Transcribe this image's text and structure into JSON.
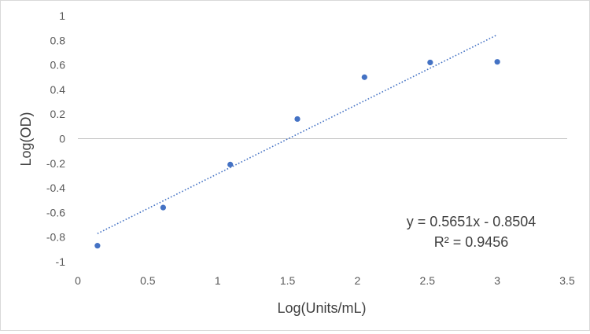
{
  "chart_data": {
    "type": "scatter",
    "title": "",
    "xlabel": "Log(Units/mL)",
    "ylabel": "Log(OD)",
    "xlim": [
      0,
      3.5
    ],
    "ylim": [
      -1,
      1
    ],
    "x_ticks": [
      0,
      0.5,
      1,
      1.5,
      2,
      2.5,
      3,
      3.5
    ],
    "y_ticks": [
      -1,
      -0.8,
      -0.6,
      -0.4,
      -0.2,
      0,
      0.2,
      0.4,
      0.6,
      0.8,
      1
    ],
    "grid": false,
    "legend": "none",
    "series": [
      {
        "x": [
          0.14,
          0.61,
          1.09,
          1.57,
          2.05,
          2.52,
          3.0
        ],
        "y": [
          -0.87,
          -0.56,
          -0.21,
          0.16,
          0.5,
          0.62,
          0.625
        ]
      }
    ],
    "trendline": {
      "type": "linear",
      "slope": 0.5651,
      "intercept": -0.8504,
      "x_range": [
        0.14,
        3.0
      ],
      "style": "dotted"
    },
    "annotations": {
      "equation": "y = 0.5651x - 0.8504",
      "r_squared": "R² = 0.9456"
    },
    "colors": {
      "marker": "#4472c4",
      "trendline": "#4472c4",
      "axis": "#bfbfbf",
      "text": "#595959"
    }
  }
}
